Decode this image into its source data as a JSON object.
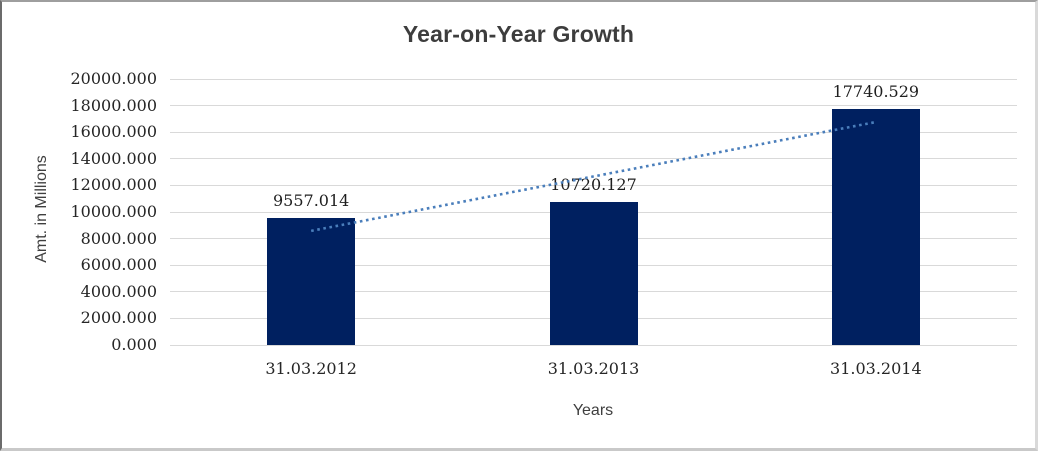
{
  "chart_data": {
    "type": "bar",
    "title": "Year-on-Year Growth",
    "xlabel": "Years",
    "ylabel": "Amt. in Millions",
    "categories": [
      "31.03.2012",
      "31.03.2013",
      "31.03.2014"
    ],
    "values": [
      9557.014,
      10720.127,
      17740.529
    ],
    "data_labels": [
      "9557.014",
      "10720.127",
      "17740.529"
    ],
    "ylim": [
      0,
      20000
    ],
    "ytick_step": 2000,
    "ytick_labels": [
      "20000.000",
      "18000.000",
      "16000.000",
      "14000.000",
      "12000.000",
      "10000.000",
      "8000.000",
      "6000.000",
      "4000.000",
      "2000.000",
      "0.000"
    ],
    "grid": "horizontal",
    "legend": "none",
    "bar_color": "#002060",
    "gridline_color": "#d9d9d9",
    "trendline": {
      "type": "linear",
      "style": "dotted",
      "color": "#4a7ebb",
      "endpoints": [
        8580.9,
        16764.3
      ]
    }
  }
}
